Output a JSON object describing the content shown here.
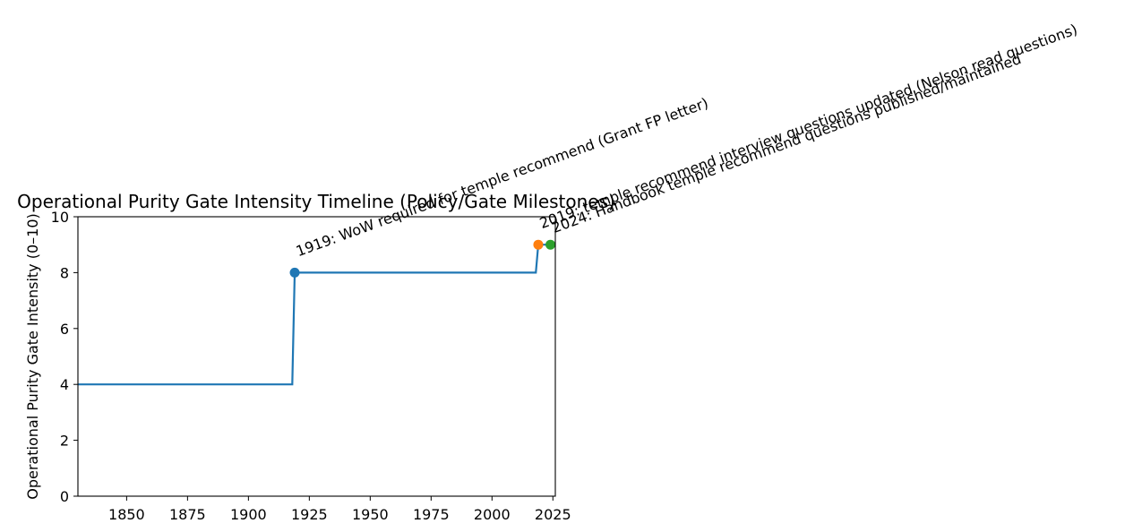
{
  "chart_data": {
    "type": "line",
    "title": "Operational Purity Gate Intensity Timeline (Policy/Gate Milestones)",
    "xlabel": "",
    "ylabel": "Operational Purity Gate Intensity (0–10)",
    "xlim": [
      1830,
      2026
    ],
    "ylim": [
      0,
      10
    ],
    "xticks": [
      1850,
      1875,
      1900,
      1925,
      1950,
      1975,
      2000,
      2025
    ],
    "yticks": [
      0,
      2,
      4,
      6,
      8,
      10
    ],
    "grid": false,
    "legend": "none",
    "series": [
      {
        "step": "post",
        "color": "#1f77b4",
        "x": [
          1830,
          1918,
          1919,
          2018,
          2019,
          2024,
          2026
        ],
        "y": [
          4,
          4,
          8,
          8,
          9,
          9,
          9
        ]
      }
    ],
    "milestones": [
      {
        "x": 1919,
        "y": 8,
        "color": "#1f77b4",
        "label": "1919: WoW required for temple recommend (Grant FP letter)"
      },
      {
        "x": 2019,
        "y": 9,
        "color": "#ff7f0e",
        "label": "2019: temple recommend interview questions updated (Nelson read questions)"
      },
      {
        "x": 2024,
        "y": 9,
        "color": "#2ca02c",
        "label": "2024: Handbook temple recommend questions published/maintained"
      }
    ]
  }
}
